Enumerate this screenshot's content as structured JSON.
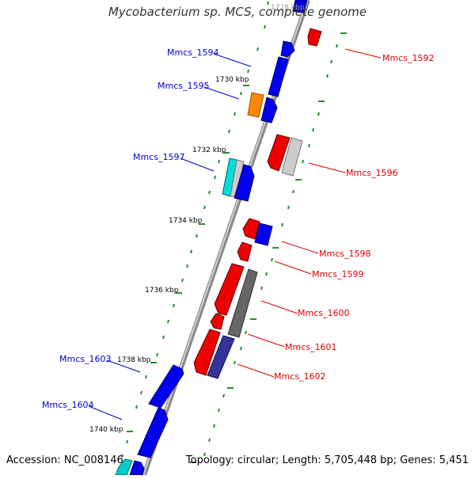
{
  "title": "Mycobacterium sp. MCS, complete genome",
  "footer": {
    "accession": "Accession: NC_008146",
    "topology": "Topology: circular; Length: 5,705,448 bp; Genes: 5,451"
  },
  "kbp_labels": [
    "1728 kbp",
    "1730 kbp",
    "1732 kbp",
    "1734 kbp",
    "1736 kbp",
    "1738 kbp",
    "1740 kbp"
  ],
  "genes_left": [
    "Mmcs_1594",
    "Mmcs_1595",
    "Mmcs_1597",
    "Mmcs_1603",
    "Mmcs_1604"
  ],
  "genes_right": [
    "Mmcs_1592",
    "Mmcs_1596",
    "Mmcs_1598",
    "Mmcs_1599",
    "Mmcs_1600",
    "Mmcs_1601",
    "Mmcs_1602"
  ],
  "colors": {
    "forward_label": "#0000cc",
    "reverse_label": "#dd0000",
    "blue_gene": "#0000ee",
    "red_gene": "#ee0000",
    "orange_gene": "#ff8800",
    "cyan_gene": "#00dddd",
    "grey_gene": "#cccccc",
    "dark_grey_gene": "#666666",
    "purple_gene": "#333399",
    "tick": "#228822",
    "backbone": "#999999"
  }
}
